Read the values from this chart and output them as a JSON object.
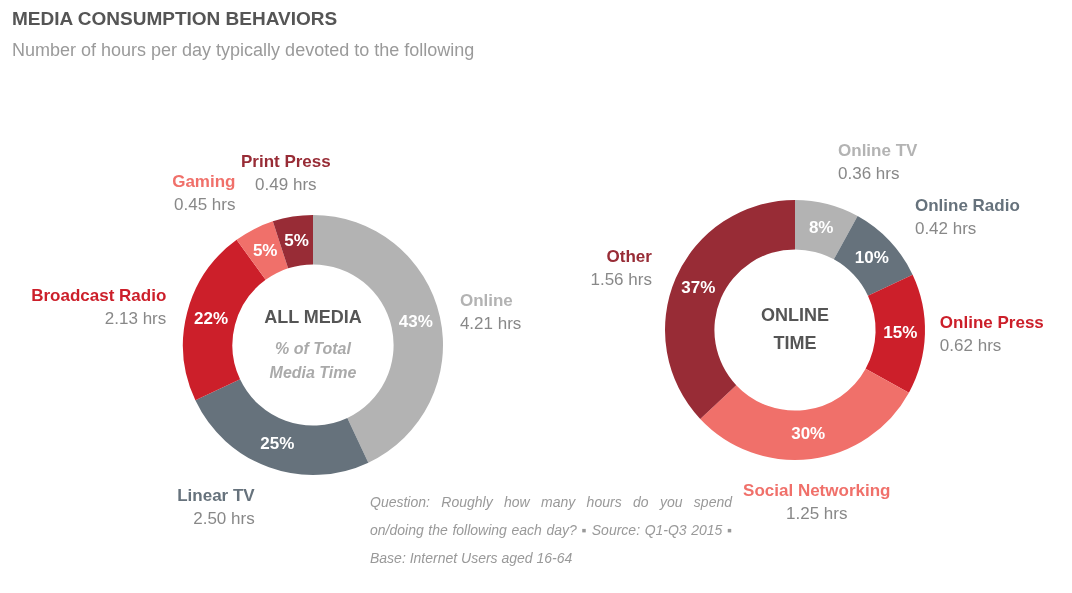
{
  "chart_data": [
    {
      "type": "other",
      "title": "MEDIA CONSUMPTION BEHAVIORS",
      "subtitle": "Number of hours per day typically devoted to the following",
      "annotations": [
        "Question: Roughly how many hours do you spend on/doing the following each day? ▪ Source: Q1-Q3 2015 ▪ Base: Internet Users aged 16-64"
      ]
    },
    {
      "type": "donut",
      "title": "ALL MEDIA",
      "subtitle": "% of Total Media Time",
      "categories": [
        "Online",
        "Linear TV",
        "Broadcast Radio",
        "Gaming",
        "Print Press"
      ],
      "values": [
        43,
        25,
        22,
        5,
        5
      ],
      "value_labels": [
        "43%",
        "25%",
        "22%",
        "5%",
        "5%"
      ],
      "colors": [
        "#b3b3b3",
        "#66727c",
        "#cc1f2a",
        "#f0706a",
        "#982c36"
      ],
      "annotations": [
        "4.21 hrs",
        "2.50 hrs",
        "2.13 hrs",
        "0.45 hrs",
        "0.49 hrs"
      ]
    },
    {
      "type": "donut",
      "title": "ONLINE TIME",
      "categories": [
        "Online TV",
        "Online Radio",
        "Online Press",
        "Social Networking",
        "Other"
      ],
      "values": [
        8,
        10,
        15,
        30,
        37
      ],
      "value_labels": [
        "8%",
        "10%",
        "15%",
        "30%",
        "37%"
      ],
      "colors": [
        "#b3b3b3",
        "#66727c",
        "#cc1f2a",
        "#f0706a",
        "#982c36"
      ],
      "annotations": [
        "0.36 hrs",
        "0.42 hrs",
        "0.62 hrs",
        "1.25 hrs",
        "1.56 hrs"
      ]
    }
  ]
}
